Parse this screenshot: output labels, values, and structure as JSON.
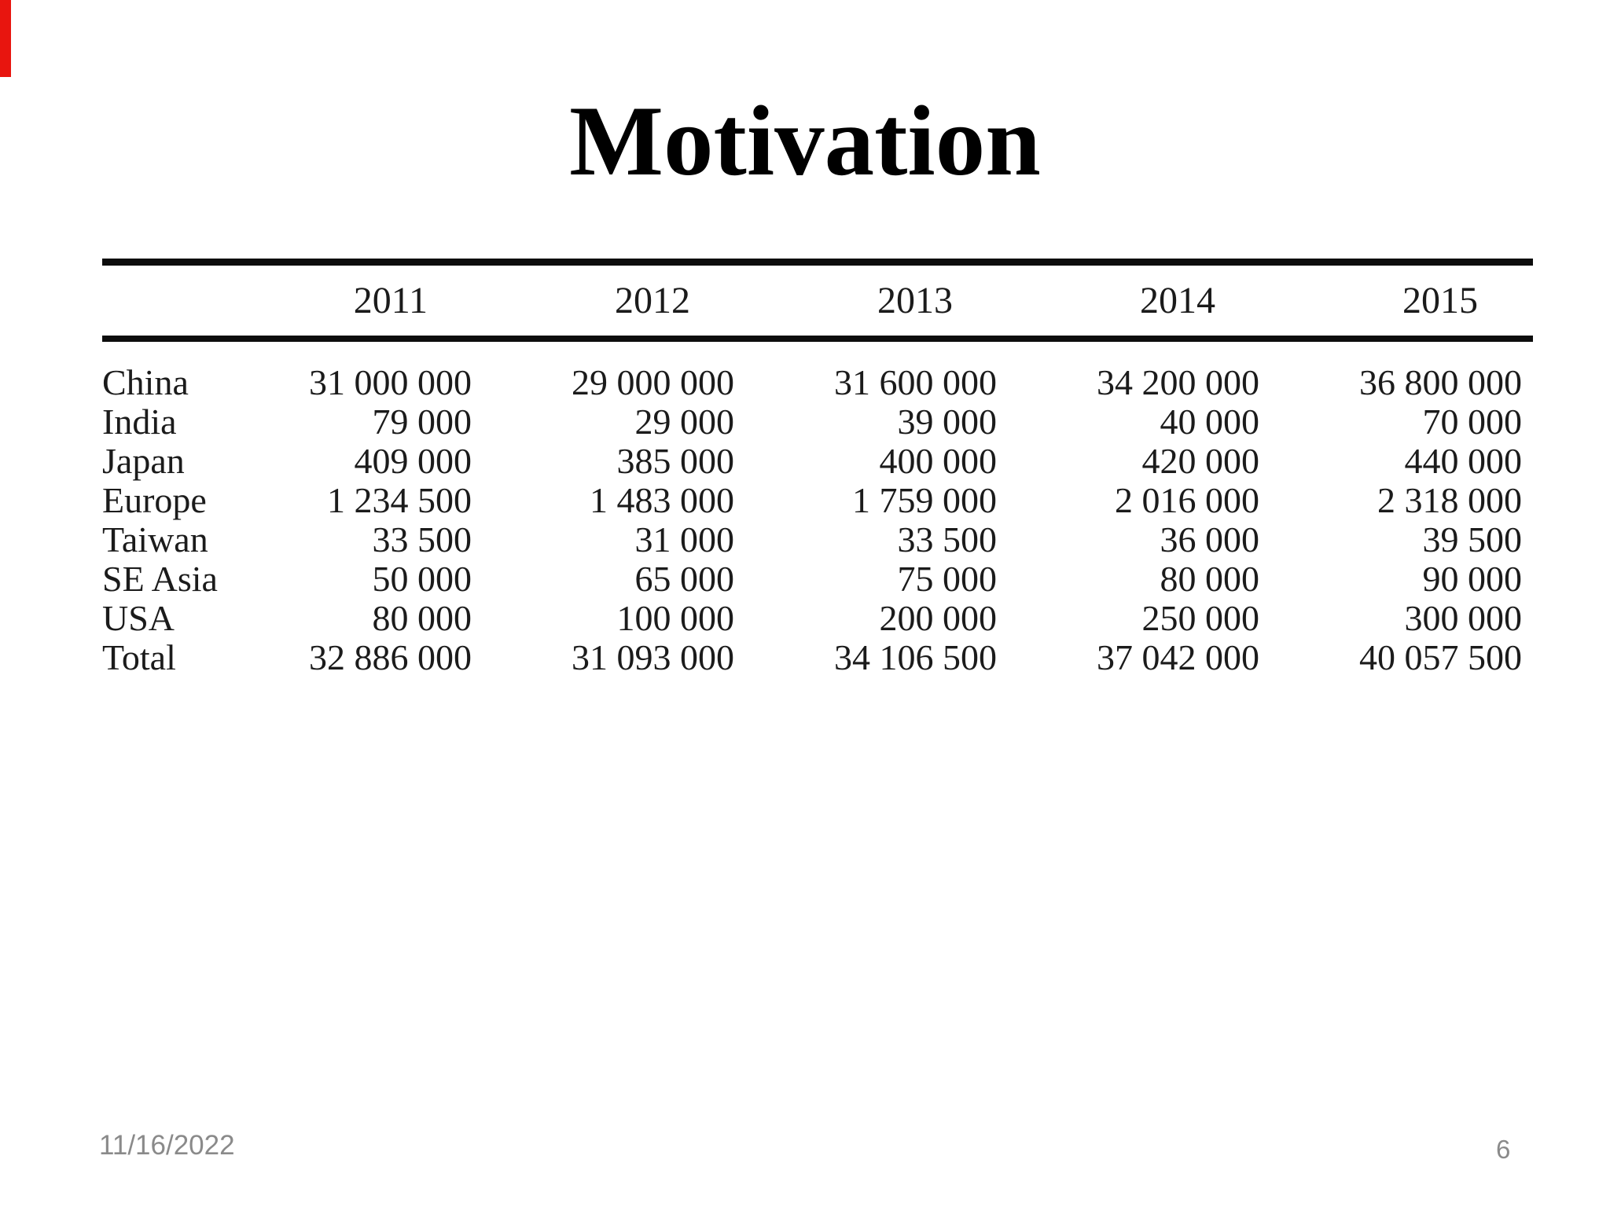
{
  "slide": {
    "title": "Motivation",
    "footer": {
      "date": "11/16/2022",
      "page_number": "6"
    },
    "accent_bar_color": "#e8150f"
  },
  "table": {
    "columns": [
      "",
      "2011",
      "2012",
      "2013",
      "2014",
      "2015"
    ],
    "rows": [
      {
        "label": "China",
        "values": [
          "31 000 000",
          "29 000 000",
          "31 600 000",
          "34 200 000",
          "36 800 000"
        ]
      },
      {
        "label": "India",
        "values": [
          "79 000",
          "29 000",
          "39 000",
          "40 000",
          "70 000"
        ]
      },
      {
        "label": "Japan",
        "values": [
          "409 000",
          "385 000",
          "400 000",
          "420 000",
          "440 000"
        ]
      },
      {
        "label": "Europe",
        "values": [
          "1 234 500",
          "1 483 000",
          "1 759 000",
          "2 016 000",
          "2 318 000"
        ]
      },
      {
        "label": "Taiwan",
        "values": [
          "33 500",
          "31 000",
          "33 500",
          "36 000",
          "39 500"
        ]
      },
      {
        "label": "SE Asia",
        "values": [
          "50 000",
          "65 000",
          "75 000",
          "80 000",
          "90 000"
        ]
      },
      {
        "label": "USA",
        "values": [
          "80 000",
          "100 000",
          "200 000",
          "250 000",
          "300 000"
        ]
      },
      {
        "label": "Total",
        "values": [
          "32 886 000",
          "31 093 000",
          "34 106 500",
          "37 042 000",
          "40 057 500"
        ]
      }
    ]
  },
  "colors": {
    "text": "#1b1b1b",
    "footer_text": "#8a8a8a",
    "accent_bar": "#e8150f",
    "rule": "#0d0d0d"
  }
}
